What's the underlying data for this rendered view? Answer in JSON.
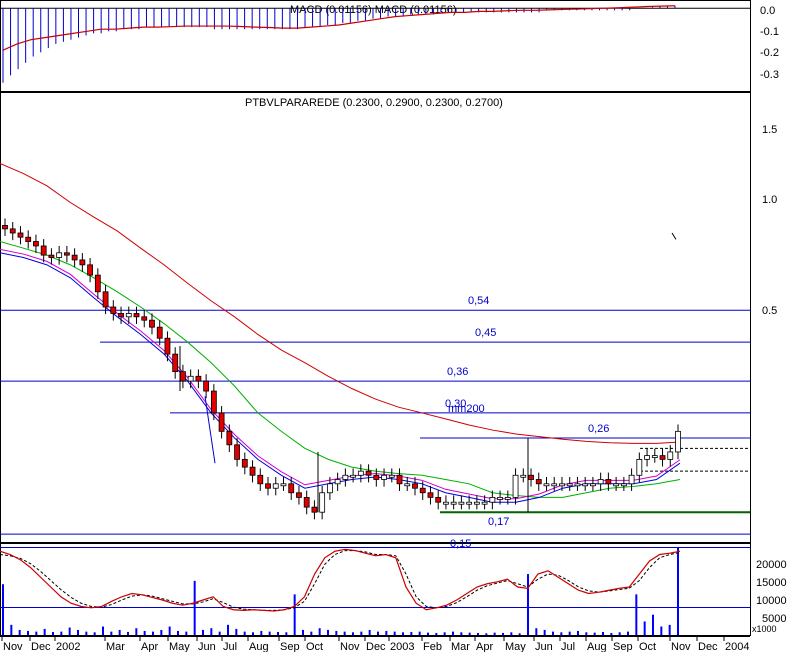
{
  "colors": {
    "background": "#ffffff",
    "frame": "#000000",
    "level_line": "#0000cc",
    "candle_up": "#ffffff",
    "candle_down": "#e00000",
    "mm200": "#d00000",
    "ma_short_blue": "#0000e0",
    "ma_short_magenta": "#d000d0",
    "ma_green": "#00b000",
    "support_green": "#006400",
    "macd_hist": "#0000cc",
    "macd_line": "#cc0000",
    "stoch_k": "#cc0000",
    "stoch_d": "#000000",
    "volume": "#0000ff"
  },
  "chart_data": [
    {
      "id": "macd",
      "type": "bar",
      "title": "MACD (0.01156) MACD (0.01156)",
      "ylim": [
        -0.38,
        0.02
      ],
      "y_ticks": [
        "0.0",
        "-0.1",
        "-0.2",
        "-0.3"
      ],
      "y_tick_values": [
        0.0,
        -0.1,
        -0.2,
        -0.3
      ],
      "histogram": [
        -0.355,
        -0.32,
        -0.29,
        -0.26,
        -0.23,
        -0.21,
        -0.19,
        -0.17,
        -0.16,
        -0.15,
        -0.14,
        -0.13,
        -0.12,
        -0.12,
        -0.11,
        -0.11,
        -0.1,
        -0.1,
        -0.1,
        -0.09,
        -0.09,
        -0.09,
        -0.09,
        -0.09,
        -0.09,
        -0.09,
        -0.09,
        -0.09,
        -0.1,
        -0.1,
        -0.1,
        -0.1,
        -0.1,
        -0.1,
        -0.1,
        -0.1,
        -0.1,
        -0.1,
        -0.1,
        -0.1,
        -0.09,
        -0.09,
        -0.09,
        -0.08,
        -0.08,
        -0.07,
        -0.07,
        -0.06,
        -0.06,
        -0.05,
        -0.05,
        -0.04,
        -0.04,
        -0.04,
        -0.03,
        -0.03,
        -0.03,
        -0.03,
        -0.02,
        -0.02,
        -0.02,
        -0.02,
        -0.02,
        -0.02,
        -0.02,
        -0.02,
        -0.02,
        -0.02,
        -0.02,
        -0.02,
        -0.02,
        -0.02,
        -0.01,
        -0.01,
        -0.01,
        -0.01,
        -0.01,
        -0.01,
        -0.01,
        -0.01,
        -0.01,
        -0.01,
        -0.01,
        -0.01,
        0.0,
        0.0,
        0.005,
        0.008,
        0.012,
        0.0116
      ],
      "macd_line": [
        -0.2,
        -0.17,
        -0.15,
        -0.14,
        -0.13,
        -0.12,
        -0.11,
        -0.1,
        -0.1,
        -0.095,
        -0.09,
        -0.09,
        -0.088,
        -0.085,
        -0.085,
        -0.085,
        -0.085,
        -0.087,
        -0.09,
        -0.092,
        -0.095,
        -0.095,
        -0.09,
        -0.085,
        -0.08,
        -0.07,
        -0.06,
        -0.05,
        -0.04,
        -0.035,
        -0.03,
        -0.025,
        -0.02,
        -0.02,
        -0.015,
        -0.015,
        -0.012,
        -0.01,
        -0.01,
        -0.008,
        -0.006,
        -0.004,
        -0.002,
        0.0,
        0.002,
        0.005,
        0.008,
        0.01,
        0.0116
      ]
    },
    {
      "id": "price",
      "type": "line",
      "title": "PTBVLPARAREDE (0.2300, 0.2900, 0.2300, 0.2700)",
      "scale": "log",
      "ylim": [
        0.145,
        1.85
      ],
      "y_ticks": [
        "1.5",
        "1.0",
        "0.5"
      ],
      "y_tick_values": [
        1.5,
        1.0,
        0.5
      ],
      "x_ticks": [
        "Nov",
        "Dec",
        "2002",
        "Mar",
        "Apr",
        "May",
        "Jun",
        "Jul",
        "Aug",
        "Sep",
        "Oct",
        "Nov",
        "Dec",
        "2003",
        "Feb",
        "Mar",
        "Apr",
        "May",
        "Jun",
        "Jul",
        "Aug",
        "Sep",
        "Oct",
        "Nov",
        "Dec",
        "2004"
      ],
      "levels": [
        {
          "value": 0.54,
          "label": "0,54"
        },
        {
          "value": 0.45,
          "label": "0,45"
        },
        {
          "value": 0.36,
          "label": "0,36"
        },
        {
          "value": 0.3,
          "label": "0,30"
        },
        {
          "value": 0.26,
          "label": "0,26"
        },
        {
          "value": 0.17,
          "label": "0,17"
        },
        {
          "value": 0.15,
          "label": "0,15"
        }
      ],
      "mm200_label": "mm200",
      "close": [
        0.86,
        0.84,
        0.82,
        0.8,
        0.78,
        0.74,
        0.73,
        0.75,
        0.74,
        0.72,
        0.7,
        0.66,
        0.6,
        0.55,
        0.53,
        0.52,
        0.53,
        0.52,
        0.51,
        0.49,
        0.46,
        0.42,
        0.38,
        0.36,
        0.37,
        0.36,
        0.34,
        0.3,
        0.27,
        0.25,
        0.23,
        0.22,
        0.21,
        0.2,
        0.195,
        0.2,
        0.2,
        0.19,
        0.185,
        0.175,
        0.17,
        0.19,
        0.2,
        0.205,
        0.21,
        0.21,
        0.215,
        0.21,
        0.205,
        0.21,
        0.21,
        0.2,
        0.2,
        0.195,
        0.19,
        0.185,
        0.18,
        0.18,
        0.18,
        0.18,
        0.18,
        0.18,
        0.18,
        0.185,
        0.185,
        0.185,
        0.21,
        0.21,
        0.205,
        0.2,
        0.2,
        0.2,
        0.2,
        0.2,
        0.2,
        0.2,
        0.2,
        0.205,
        0.2,
        0.2,
        0.2,
        0.21,
        0.23,
        0.235,
        0.235,
        0.23,
        0.24,
        0.27
      ],
      "mm200": [
        1.25,
        1.18,
        1.1,
        1.0,
        0.92,
        0.85,
        0.77,
        0.7,
        0.63,
        0.57,
        0.52,
        0.47,
        0.43,
        0.4,
        0.37,
        0.345,
        0.325,
        0.31,
        0.3,
        0.29,
        0.28,
        0.272,
        0.266,
        0.262,
        0.258,
        0.255,
        0.253,
        0.252,
        0.252,
        0.254
      ],
      "ma_green": [
        0.8,
        0.77,
        0.74,
        0.7,
        0.65,
        0.6,
        0.55,
        0.5,
        0.45,
        0.4,
        0.35,
        0.3,
        0.27,
        0.245,
        0.23,
        0.22,
        0.215,
        0.212,
        0.21,
        0.205,
        0.2,
        0.19,
        0.187,
        0.185,
        0.185,
        0.19,
        0.195,
        0.197,
        0.2,
        0.205
      ],
      "ma_blue": [
        0.75,
        0.73,
        0.7,
        0.65,
        0.58,
        0.52,
        0.47,
        0.42,
        0.36,
        0.3,
        0.26,
        0.23,
        0.21,
        0.195,
        0.2,
        0.205,
        0.208,
        0.205,
        0.2,
        0.19,
        0.185,
        0.18,
        0.18,
        0.185,
        0.195,
        0.2,
        0.2,
        0.2,
        0.205,
        0.225
      ]
    },
    {
      "id": "stochastic_volume",
      "type": "line",
      "scale_label": "x1000",
      "y_ticks": [
        "20000",
        "15000",
        "10000",
        "5000"
      ],
      "y_tick_values": [
        20000,
        15000,
        10000,
        5000
      ],
      "ylim": [
        0,
        26000
      ],
      "stoch_k": [
        95,
        90,
        82,
        70,
        55,
        40,
        25,
        15,
        10,
        8,
        10,
        18,
        25,
        30,
        28,
        24,
        20,
        15,
        12,
        15,
        20,
        25,
        10,
        5,
        4,
        5,
        4,
        3,
        5,
        10,
        25,
        60,
        85,
        95,
        98,
        96,
        92,
        88,
        90,
        85,
        40,
        15,
        5,
        8,
        12,
        20,
        30,
        40,
        45,
        48,
        52,
        40,
        38,
        60,
        65,
        55,
        45,
        35,
        30,
        32,
        35,
        38,
        40,
        60,
        80,
        90,
        92,
        95
      ],
      "stoch_d": [
        90,
        88,
        84,
        76,
        64,
        50,
        36,
        24,
        15,
        10,
        9,
        13,
        20,
        26,
        28,
        26,
        22,
        18,
        14,
        14,
        17,
        22,
        16,
        9,
        6,
        5,
        4,
        4,
        5,
        8,
        18,
        45,
        75,
        90,
        96,
        96,
        94,
        90,
        90,
        88,
        60,
        25,
        10,
        8,
        10,
        16,
        25,
        35,
        42,
        46,
        50,
        45,
        40,
        52,
        60,
        58,
        50,
        40,
        34,
        32,
        34,
        36,
        38,
        50,
        70,
        85,
        90,
        93
      ],
      "volume": [
        15000,
        3000,
        1500,
        1200,
        1000,
        1800,
        900,
        1000,
        2200,
        1500,
        1000,
        800,
        2500,
        1000,
        1500,
        900,
        2000,
        1200,
        1000,
        1500,
        2500,
        1200,
        1000,
        16000,
        1500,
        2000,
        1000,
        3000,
        1800,
        1000,
        800,
        1200,
        1000,
        900,
        800,
        12000,
        1500,
        1000,
        2000,
        1500,
        1200,
        1000,
        800,
        1000,
        1500,
        1000,
        1200,
        1000,
        800,
        900,
        1000,
        700,
        600,
        800,
        1000,
        800,
        700,
        600,
        500,
        700,
        600,
        800,
        500,
        18000,
        2000,
        1500,
        1000,
        800,
        1000,
        1200,
        800,
        700,
        900,
        600,
        800,
        1000,
        12000,
        4000,
        6000,
        2500,
        3000,
        26000
      ]
    }
  ]
}
